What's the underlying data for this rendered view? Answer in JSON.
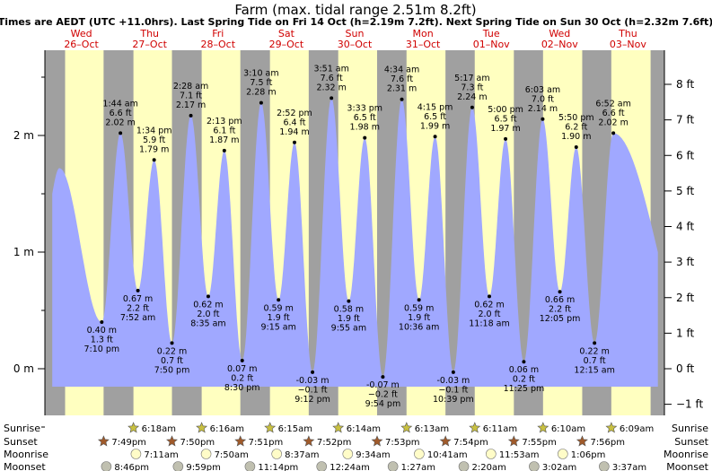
{
  "header": {
    "title": "Farm (max. tidal range 2.51m 8.2ft)",
    "subtitle": "Times are AEDT (UTC +11.0hrs). Last Spring Tide on Fri 14 Oct (h=2.19m 7.2ft). Next Spring Tide on Sun 30 Oct (h=2.32m 7.6ft)"
  },
  "colors": {
    "day": "#ffffc0",
    "night": "#a0a0a0",
    "water": "#a0a8ff",
    "sun": "#c8c040",
    "sunset": "#a05a2a",
    "moon": "#fffcc8",
    "moonset": "#c0c0b0"
  },
  "chart_data": {
    "type": "area",
    "title": "Farm (max. tidal range 2.51m 8.2ft)",
    "ylabel_left": "m",
    "ylabel_right": "ft",
    "ylim_m": [
      -0.5,
      2.6
    ],
    "yticks_left": [
      "0 m",
      "1 m",
      "2 m"
    ],
    "yticks_right": [
      "−1 ft",
      "0 ft",
      "1 ft",
      "2 ft",
      "3 ft",
      "4 ft",
      "5 ft",
      "6 ft",
      "7 ft",
      "8 ft"
    ],
    "days": [
      {
        "name": "Wed",
        "date": "26–Oct"
      },
      {
        "name": "Thu",
        "date": "27–Oct"
      },
      {
        "name": "Fri",
        "date": "28–Oct"
      },
      {
        "name": "Sat",
        "date": "29–Oct"
      },
      {
        "name": "Sun",
        "date": "30–Oct"
      },
      {
        "name": "Mon",
        "date": "31–Oct"
      },
      {
        "name": "Tue",
        "date": "01–Nov"
      },
      {
        "name": "Wed",
        "date": "02–Nov"
      },
      {
        "name": "Thu",
        "date": "03–Nov"
      }
    ],
    "x_range_hours": [
      -0.8,
      216.8
    ],
    "start_level_m": 1.72,
    "end_level_m": 1.0,
    "tides": [
      {
        "t": 19.17,
        "h": 0.4,
        "ft": "1.3 ft",
        "time": "7:10 pm",
        "type": "low"
      },
      {
        "t": 25.73,
        "h": 2.02,
        "ft": "6.6 ft",
        "time": "1:44 am",
        "type": "high"
      },
      {
        "t": 31.87,
        "h": 0.67,
        "ft": "2.2 ft",
        "time": "7:52 am",
        "type": "low"
      },
      {
        "t": 37.57,
        "h": 1.79,
        "ft": "5.9 ft",
        "time": "1:34 pm",
        "type": "high"
      },
      {
        "t": 43.83,
        "h": 0.22,
        "ft": "0.7 ft",
        "time": "7:50 pm",
        "type": "low"
      },
      {
        "t": 50.47,
        "h": 2.17,
        "ft": "7.1 ft",
        "time": "2:28 am",
        "type": "high"
      },
      {
        "t": 56.58,
        "h": 0.62,
        "ft": "2.0 ft",
        "time": "8:35 am",
        "type": "low"
      },
      {
        "t": 62.22,
        "h": 1.87,
        "ft": "6.1 ft",
        "time": "2:13 pm",
        "type": "high"
      },
      {
        "t": 68.5,
        "h": 0.07,
        "ft": "0.2 ft",
        "time": "8:30 pm",
        "type": "low"
      },
      {
        "t": 75.17,
        "h": 2.28,
        "ft": "7.5 ft",
        "time": "3:10 am",
        "type": "high"
      },
      {
        "t": 81.25,
        "h": 0.59,
        "ft": "1.9 ft",
        "time": "9:15 am",
        "type": "low"
      },
      {
        "t": 86.87,
        "h": 1.94,
        "ft": "6.4 ft",
        "time": "2:52 pm",
        "type": "high"
      },
      {
        "t": 93.2,
        "h": -0.03,
        "ft": "−0.1 ft",
        "time": "9:12 pm",
        "type": "low"
      },
      {
        "t": 99.85,
        "h": 2.32,
        "ft": "7.6 ft",
        "time": "3:51 am",
        "type": "high"
      },
      {
        "t": 105.92,
        "h": 0.58,
        "ft": "1.9 ft",
        "time": "9:55 am",
        "type": "low"
      },
      {
        "t": 111.55,
        "h": 1.98,
        "ft": "6.5 ft",
        "time": "3:33 pm",
        "type": "high"
      },
      {
        "t": 117.9,
        "h": -0.07,
        "ft": "−0.2 ft",
        "time": "9:54 pm",
        "type": "low"
      },
      {
        "t": 124.57,
        "h": 2.31,
        "ft": "7.6 ft",
        "time": "4:34 am",
        "type": "high"
      },
      {
        "t": 130.6,
        "h": 0.59,
        "ft": "1.9 ft",
        "time": "10:36 am",
        "type": "low"
      },
      {
        "t": 136.25,
        "h": 1.99,
        "ft": "6.5 ft",
        "time": "4:15 pm",
        "type": "high"
      },
      {
        "t": 142.65,
        "h": -0.03,
        "ft": "−0.1 ft",
        "time": "10:39 pm",
        "type": "low"
      },
      {
        "t": 149.28,
        "h": 2.24,
        "ft": "7.3 ft",
        "time": "5:17 am",
        "type": "high"
      },
      {
        "t": 155.3,
        "h": 0.62,
        "ft": "2.0 ft",
        "time": "11:18 am",
        "type": "low"
      },
      {
        "t": 161.0,
        "h": 1.97,
        "ft": "6.5 ft",
        "time": "5:00 pm",
        "type": "high"
      },
      {
        "t": 167.42,
        "h": 0.06,
        "ft": "0.2 ft",
        "time": "11:25 pm",
        "type": "low"
      },
      {
        "t": 174.05,
        "h": 2.14,
        "ft": "7.0 ft",
        "time": "6:03 am",
        "type": "high"
      },
      {
        "t": 180.08,
        "h": 0.66,
        "ft": "2.2 ft",
        "time": "12:05 pm",
        "type": "low"
      },
      {
        "t": 185.83,
        "h": 1.9,
        "ft": "6.2 ft",
        "time": "5:50 pm",
        "type": "high"
      },
      {
        "t": 192.25,
        "h": 0.22,
        "ft": "0.7 ft",
        "time": "12:15 am",
        "type": "low"
      },
      {
        "t": 198.87,
        "h": 2.02,
        "ft": "6.6 ft",
        "time": "6:52 am",
        "type": "high"
      }
    ],
    "nights": [
      [
        -1,
        6.3
      ],
      [
        19.82,
        30.3
      ],
      [
        43.83,
        54.27
      ],
      [
        67.85,
        78.25
      ],
      [
        91.87,
        102.23
      ],
      [
        115.88,
        126.22
      ],
      [
        139.9,
        150.18
      ],
      [
        163.92,
        174.17
      ],
      [
        187.93,
        198.15
      ],
      [
        211.95,
        217
      ]
    ]
  },
  "astro": {
    "labels": {
      "sunrise": "Sunrise",
      "sunset": "Sunset",
      "moonrise": "Moonrise",
      "moonset": "Moonset"
    },
    "sunrise": [
      {
        "t": 30.3,
        "text": "6:18am"
      },
      {
        "t": 54.27,
        "text": "6:16am"
      },
      {
        "t": 78.25,
        "text": "6:15am"
      },
      {
        "t": 102.23,
        "text": "6:14am"
      },
      {
        "t": 126.22,
        "text": "6:13am"
      },
      {
        "t": 150.18,
        "text": "6:11am"
      },
      {
        "t": 174.17,
        "text": "6:10am"
      },
      {
        "t": 198.15,
        "text": "6:09am"
      }
    ],
    "sunset": [
      {
        "t": 19.82,
        "text": "7:49pm"
      },
      {
        "t": 43.83,
        "text": "7:50pm"
      },
      {
        "t": 67.85,
        "text": "7:51pm"
      },
      {
        "t": 91.87,
        "text": "7:52pm"
      },
      {
        "t": 115.88,
        "text": "7:53pm"
      },
      {
        "t": 139.9,
        "text": "7:54pm"
      },
      {
        "t": 163.92,
        "text": "7:55pm"
      },
      {
        "t": 187.93,
        "text": "7:56pm"
      }
    ],
    "moonrise": [
      {
        "t": 31.18,
        "text": "7:11am"
      },
      {
        "t": 55.83,
        "text": "7:50am"
      },
      {
        "t": 80.62,
        "text": "8:37am"
      },
      {
        "t": 105.57,
        "text": "9:34am"
      },
      {
        "t": 130.68,
        "text": "10:41am"
      },
      {
        "t": 155.88,
        "text": "11:53am"
      },
      {
        "t": 181.1,
        "text": "1:06pm"
      }
    ],
    "moonset": [
      {
        "t": 20.77,
        "text": "8:46pm"
      },
      {
        "t": 45.98,
        "text": "9:59pm"
      },
      {
        "t": 71.23,
        "text": "11:14pm"
      },
      {
        "t": 96.4,
        "text": "12:24am"
      },
      {
        "t": 121.45,
        "text": "1:27am"
      },
      {
        "t": 146.33,
        "text": "2:20am"
      },
      {
        "t": 171.03,
        "text": "3:02am"
      },
      {
        "t": 195.62,
        "text": "3:37am"
      }
    ]
  }
}
